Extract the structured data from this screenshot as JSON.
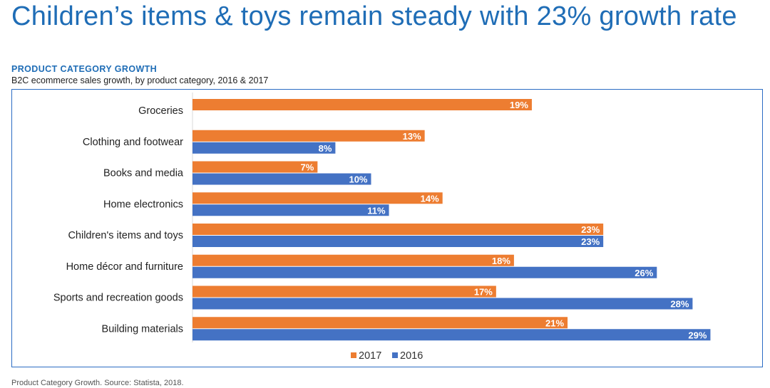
{
  "headline": "Children’s items & toys remain steady with 23% growth rate",
  "section_title": "PRODUCT CATEGORY GROWTH",
  "subtitle": "B2C ecommerce sales growth, by product category, 2016 & 2017",
  "source": "Product Category Growth. Source: Statista, 2018.",
  "colors": {
    "headline": "#1f6db6",
    "section_title": "#1f6db6",
    "series_2017": "#ed7d31",
    "series_2016": "#4472c4",
    "frame": "#2b6cc4"
  },
  "chart_data": {
    "type": "bar",
    "orientation": "horizontal",
    "title": "PRODUCT CATEGORY GROWTH",
    "subtitle": "B2C ecommerce sales growth, by product category, 2016 & 2017",
    "categories": [
      "Groceries",
      "Clothing and footwear",
      "Books and media",
      "Home electronics",
      "Children's items and toys",
      "Home décor and furniture",
      "Sports and recreation goods",
      "Building materials"
    ],
    "series": [
      {
        "name": "2017",
        "color": "#ed7d31",
        "values": [
          19,
          13,
          7,
          14,
          23,
          18,
          17,
          21
        ]
      },
      {
        "name": "2016",
        "color": "#4472c4",
        "values": [
          null,
          8,
          10,
          11,
          23,
          26,
          28,
          29
        ]
      }
    ],
    "value_suffix": "%",
    "xlim": [
      0,
      30
    ],
    "grid": false,
    "x_axis_visible": false,
    "data_labels": "inside-end",
    "legend": {
      "position": "bottom",
      "entries": [
        "2017",
        "2016"
      ]
    }
  }
}
